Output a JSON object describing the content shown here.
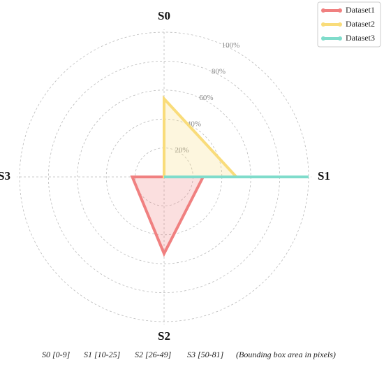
{
  "chart_data": {
    "type": "radar",
    "categories": [
      "S0",
      "S1",
      "S2",
      "S3"
    ],
    "series": [
      {
        "name": "Dataset1",
        "color": "#f08080",
        "values": [
          0,
          27,
          53,
          22
        ]
      },
      {
        "name": "Dataset2",
        "color": "#f9dc7a",
        "values": [
          54,
          50,
          0,
          0
        ]
      },
      {
        "name": "Dataset3",
        "color": "#7fdccb",
        "values": [
          0,
          100,
          0,
          0
        ]
      }
    ],
    "rlim": [
      0,
      100
    ],
    "rticks": [
      {
        "value": 20,
        "label": "20%"
      },
      {
        "value": 40,
        "label": "40%"
      },
      {
        "value": 60,
        "label": "60%"
      },
      {
        "value": 80,
        "label": "80%"
      },
      {
        "value": 100,
        "label": "100%"
      }
    ],
    "grid": true,
    "legend": "upper-right",
    "footnotes": [
      "S0 [0-9]",
      "S1 [10-25]",
      "S2 [26-49]",
      "S3 [50-81]",
      "(Bounding box area in pixels)"
    ]
  }
}
